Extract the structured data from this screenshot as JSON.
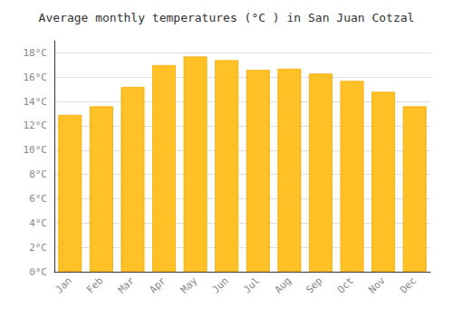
{
  "chart_data": {
    "type": "bar",
    "title": "Average monthly temperatures (°C ) in San Juan Cotzal",
    "categories": [
      "Jan",
      "Feb",
      "Mar",
      "Apr",
      "May",
      "Jun",
      "Jul",
      "Aug",
      "Sep",
      "Oct",
      "Nov",
      "Dec"
    ],
    "values": [
      12.9,
      13.6,
      15.2,
      17.0,
      17.7,
      17.4,
      16.6,
      16.7,
      16.3,
      15.7,
      14.8,
      13.6
    ],
    "color": "#FFC125",
    "ylim": [
      0,
      19
    ],
    "yticks": [
      {
        "value": 0,
        "label": "0°C"
      },
      {
        "value": 2,
        "label": "2°C"
      },
      {
        "value": 4,
        "label": "4°C"
      },
      {
        "value": 6,
        "label": "6°C"
      },
      {
        "value": 8,
        "label": "8°C"
      },
      {
        "value": 10,
        "label": "10°C"
      },
      {
        "value": 12,
        "label": "12°C"
      },
      {
        "value": 14,
        "label": "14°C"
      },
      {
        "value": 16,
        "label": "16°C"
      },
      {
        "value": 18,
        "label": "18°C"
      }
    ],
    "grid": true
  }
}
